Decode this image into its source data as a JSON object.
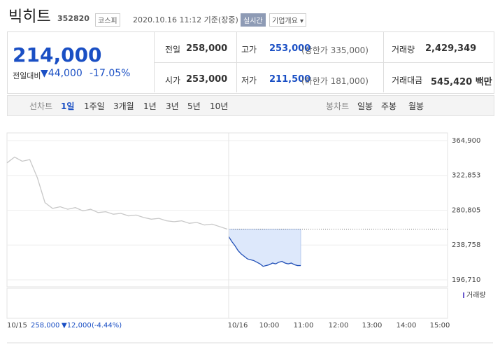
{
  "header": {
    "name": "빅히트",
    "code": "352820",
    "market": "코스피",
    "time": "2020.10.16 11:12 기준(장중)",
    "realtime": "실시간",
    "company": "기업개요"
  },
  "quote": {
    "price": "214,000",
    "change_label": "전일대비",
    "change": "44,000",
    "rate": "-17.05%"
  },
  "stats": [
    [
      {
        "label": "전일",
        "value": "258,000"
      },
      {
        "label": "고가",
        "value": "253,000",
        "note": "(상한가 335,000)"
      },
      {
        "label": "거래량",
        "value": "2,429,349"
      }
    ],
    [
      {
        "label": "시가",
        "value": "253,000"
      },
      {
        "label": "저가",
        "value": "211,500",
        "note": "(하한가 181,000)"
      },
      {
        "label": "거래대금",
        "value": "545,420 백만"
      }
    ]
  ],
  "tabs": {
    "line_label": "선차트",
    "line": [
      "1일",
      "1주일",
      "3개월",
      "1년",
      "3년",
      "5년",
      "10년"
    ],
    "candle_label": "봉차트",
    "candle": [
      "일봉",
      "주봉",
      "월봉"
    ]
  },
  "chart_data": {
    "type": "line",
    "ylim": [
      196710,
      364900
    ],
    "yticks": [
      {
        "value": 364900,
        "label": "364,900"
      },
      {
        "value": 322853,
        "label": "322,853"
      },
      {
        "value": 280805,
        "label": "280,805"
      },
      {
        "value": 238758,
        "label": "238,758"
      },
      {
        "value": 196710,
        "label": "196,710"
      }
    ],
    "reference": 258000,
    "series": [
      {
        "color": "#c8c8c8",
        "values": [
          338000,
          345000,
          340000,
          342000,
          320000,
          290000,
          283000,
          285000,
          282000,
          284000,
          280000,
          282000,
          278000,
          279000,
          276000,
          277000,
          274000,
          275000,
          272000,
          270000,
          271000,
          268000,
          267000,
          268000,
          265000,
          266000,
          263000,
          264000,
          261000,
          258000
        ]
      },
      {
        "color": "#2452b8",
        "values": [
          249000,
          243000,
          238000,
          232000,
          228000,
          225000,
          222000,
          221000,
          220000,
          218000,
          216000,
          213000,
          214000,
          215000,
          217000,
          216000,
          218000,
          219000,
          217000,
          216000,
          217000,
          215000,
          214000,
          214000
        ]
      }
    ],
    "x_labels": [
      "10/16",
      "10:00",
      "11:00",
      "12:00",
      "13:00",
      "14:00",
      "15:00"
    ],
    "volume_label": "거래량",
    "footer": {
      "date": "10/15",
      "close": "258,000",
      "change": "▼12,000",
      "rate": "(-4.44%)"
    }
  }
}
